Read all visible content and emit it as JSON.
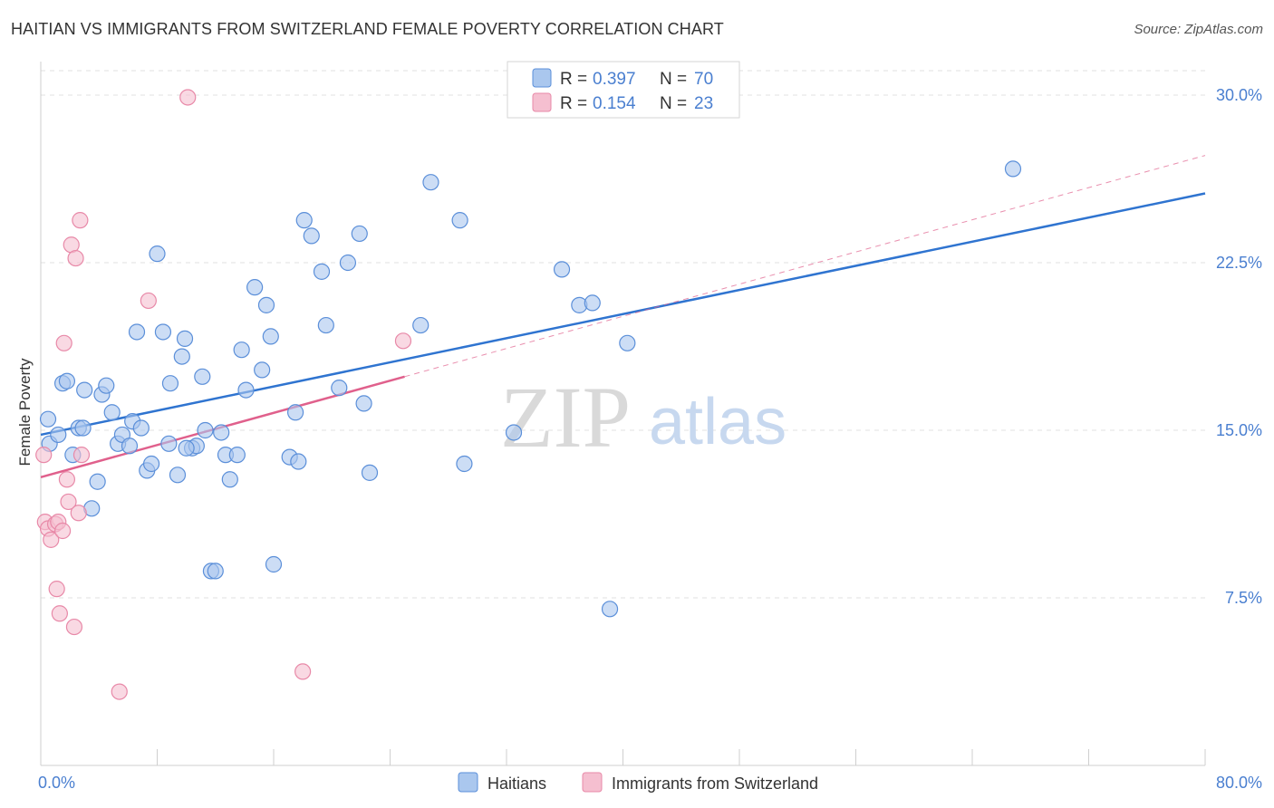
{
  "title": "HAITIAN VS IMMIGRANTS FROM SWITZERLAND FEMALE POVERTY CORRELATION CHART",
  "source": "Source: ZipAtlas.com",
  "watermark": {
    "zip": "ZIP",
    "atlas": "atlas"
  },
  "colors": {
    "blue": "#5b8fd9",
    "blue_fill": "#aac7ee",
    "blue_line": "#2f74d0",
    "pink": "#e889a8",
    "pink_fill": "#f5bfd0",
    "pink_line": "#e0608c",
    "grid": "#e0e0e0",
    "axis_text": "#4a7fd0"
  },
  "legend": {
    "rows": [
      {
        "r_label": "R =",
        "r_value": "0.397",
        "n_label": "N =",
        "n_value": "70",
        "color": "blue"
      },
      {
        "r_label": "R =",
        "r_value": "0.154",
        "n_label": "N =",
        "n_value": "23",
        "color": "pink"
      }
    ]
  },
  "bottom_legend": [
    "Haitians",
    "Immigrants from Switzerland"
  ],
  "chart_data": {
    "type": "scatter",
    "title": "HAITIAN VS IMMIGRANTS FROM SWITZERLAND FEMALE POVERTY CORRELATION CHART",
    "xlabel": "",
    "ylabel": "Female Poverty",
    "xlim": [
      0,
      80
    ],
    "ylim": [
      0,
      31.5
    ],
    "x_tick_labels": [
      "0.0%",
      "80.0%"
    ],
    "y_ticks": [
      7.5,
      15.0,
      22.5,
      30.0
    ],
    "y_tick_labels": [
      "7.5%",
      "15.0%",
      "22.5%",
      "30.0%"
    ],
    "grid": true,
    "legend_position": "top-center",
    "series": [
      {
        "name": "Haitians",
        "color": "blue",
        "r": 0.397,
        "n": 70,
        "trend": {
          "x": [
            0,
            80
          ],
          "y": [
            14.8,
            25.6
          ],
          "style": "solid"
        },
        "points": [
          [
            0.5,
            15.5
          ],
          [
            0.6,
            14.4
          ],
          [
            1.2,
            14.8
          ],
          [
            1.5,
            17.1
          ],
          [
            1.8,
            17.2
          ],
          [
            2.2,
            13.9
          ],
          [
            2.6,
            15.1
          ],
          [
            3.0,
            16.8
          ],
          [
            3.5,
            11.5
          ],
          [
            3.9,
            12.7
          ],
          [
            4.2,
            16.6
          ],
          [
            4.5,
            17.0
          ],
          [
            4.9,
            15.8
          ],
          [
            5.3,
            14.4
          ],
          [
            5.6,
            14.8
          ],
          [
            6.1,
            14.3
          ],
          [
            6.3,
            15.4
          ],
          [
            6.6,
            19.4
          ],
          [
            6.9,
            15.1
          ],
          [
            7.3,
            13.2
          ],
          [
            7.6,
            13.5
          ],
          [
            8.0,
            22.9
          ],
          [
            8.4,
            19.4
          ],
          [
            8.8,
            14.4
          ],
          [
            8.9,
            17.1
          ],
          [
            9.4,
            13.0
          ],
          [
            9.7,
            18.3
          ],
          [
            9.9,
            19.1
          ],
          [
            10.4,
            14.2
          ],
          [
            10.7,
            14.3
          ],
          [
            11.1,
            17.4
          ],
          [
            11.3,
            15.0
          ],
          [
            11.7,
            8.7
          ],
          [
            12.0,
            8.7
          ],
          [
            12.4,
            14.9
          ],
          [
            12.7,
            13.9
          ],
          [
            13.0,
            12.8
          ],
          [
            13.5,
            13.9
          ],
          [
            13.8,
            18.6
          ],
          [
            14.1,
            16.8
          ],
          [
            14.7,
            21.4
          ],
          [
            15.2,
            17.7
          ],
          [
            15.5,
            20.6
          ],
          [
            15.8,
            19.2
          ],
          [
            16.0,
            9.0
          ],
          [
            17.1,
            13.8
          ],
          [
            17.5,
            15.8
          ],
          [
            17.7,
            13.6
          ],
          [
            18.1,
            24.4
          ],
          [
            18.6,
            23.7
          ],
          [
            19.3,
            22.1
          ],
          [
            19.6,
            19.7
          ],
          [
            20.5,
            16.9
          ],
          [
            21.1,
            22.5
          ],
          [
            21.9,
            23.8
          ],
          [
            22.2,
            16.2
          ],
          [
            22.6,
            13.1
          ],
          [
            26.1,
            19.7
          ],
          [
            26.8,
            26.1
          ],
          [
            28.8,
            24.4
          ],
          [
            29.1,
            13.5
          ],
          [
            32.5,
            14.9
          ],
          [
            35.8,
            22.2
          ],
          [
            37.0,
            20.6
          ],
          [
            37.9,
            20.7
          ],
          [
            39.1,
            7.0
          ],
          [
            40.3,
            18.9
          ],
          [
            66.8,
            26.7
          ],
          [
            2.9,
            15.1
          ],
          [
            10.0,
            14.2
          ]
        ]
      },
      {
        "name": "Immigrants from Switzerland",
        "color": "pink",
        "r": 0.154,
        "n": 23,
        "trend": {
          "x": [
            0,
            25
          ],
          "y": [
            12.9,
            17.4
          ],
          "style": "solid"
        },
        "trend_extension": {
          "x": [
            25,
            80
          ],
          "y": [
            17.4,
            27.3
          ],
          "style": "dashed"
        },
        "points": [
          [
            0.2,
            13.9
          ],
          [
            0.3,
            10.9
          ],
          [
            0.5,
            10.6
          ],
          [
            0.7,
            10.1
          ],
          [
            1.0,
            10.8
          ],
          [
            1.1,
            7.9
          ],
          [
            1.2,
            10.9
          ],
          [
            1.3,
            6.8
          ],
          [
            1.5,
            10.5
          ],
          [
            1.6,
            18.9
          ],
          [
            1.8,
            12.8
          ],
          [
            1.9,
            11.8
          ],
          [
            2.1,
            23.3
          ],
          [
            2.3,
            6.2
          ],
          [
            2.4,
            22.7
          ],
          [
            2.6,
            11.3
          ],
          [
            2.7,
            24.4
          ],
          [
            2.8,
            13.9
          ],
          [
            5.4,
            3.3
          ],
          [
            7.4,
            20.8
          ],
          [
            10.1,
            29.9
          ],
          [
            18.0,
            4.2
          ],
          [
            24.9,
            19.0
          ]
        ]
      }
    ]
  }
}
